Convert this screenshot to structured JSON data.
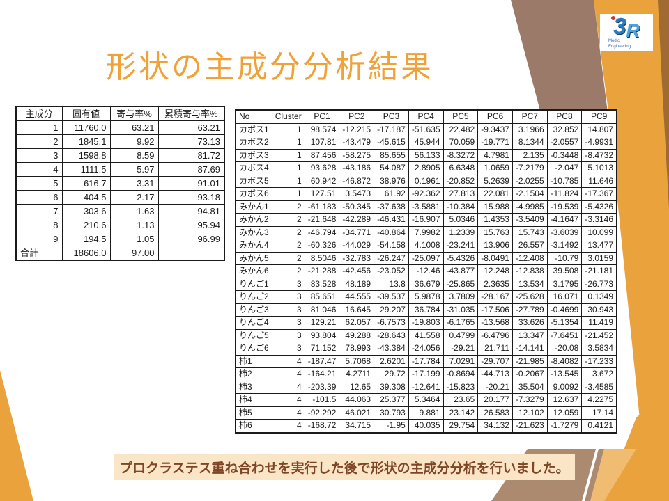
{
  "slide": {
    "title": "形状の主成分分析結果",
    "caption": "プロクラステス重ね合わせを実行した後で形状の主成分分析を行いました。"
  },
  "logo": {
    "mark_3": "3",
    "mark_r": "R",
    "line1": "Medic",
    "line2": "Engineering"
  },
  "colors": {
    "title_orange": "#F0A137",
    "orange": "#E9A23C",
    "taupe_top": "#9C7A6A",
    "sienna_corner": "#A06B32",
    "taupe_bottom": "#AC8A70",
    "light_orange": "#F0BC72",
    "caption_bg": "#FAE5C6",
    "caption_text": "#7E4627",
    "table_border": "#1A1A1A",
    "logo_blue_dark": "#2B7BC0",
    "logo_blue_light": "#4AA4DC",
    "logo_red": "#CC3333",
    "white": "#FFFFFF"
  },
  "eigen_table": {
    "headers": [
      "主成分",
      "固有値",
      "寄与率%",
      "累積寄与率%"
    ],
    "rows": [
      [
        "1",
        "11760.0",
        "63.21",
        "63.21"
      ],
      [
        "2",
        "1845.1",
        "9.92",
        "73.13"
      ],
      [
        "3",
        "1598.8",
        "8.59",
        "81.72"
      ],
      [
        "4",
        "1111.5",
        "5.97",
        "87.69"
      ],
      [
        "5",
        "616.7",
        "3.31",
        "91.01"
      ],
      [
        "6",
        "404.5",
        "2.17",
        "93.18"
      ],
      [
        "7",
        "303.6",
        "1.63",
        "94.81"
      ],
      [
        "8",
        "210.6",
        "1.13",
        "95.94"
      ],
      [
        "9",
        "194.5",
        "1.05",
        "96.99"
      ],
      [
        "合計",
        "18606.0",
        "97.00",
        ""
      ]
    ]
  },
  "pc_table": {
    "headers": [
      "No",
      "Cluster",
      "PC1",
      "PC2",
      "PC3",
      "PC4",
      "PC5",
      "PC6",
      "PC7",
      "PC8",
      "PC9"
    ],
    "rows": [
      [
        "カボス1",
        "1",
        "98.574",
        "-12.215",
        "-17.187",
        "-51.635",
        "22.482",
        "-9.3437",
        "3.1966",
        "32.852",
        "14.807"
      ],
      [
        "カボス2",
        "1",
        "107.81",
        "-43.479",
        "-45.615",
        "45.944",
        "70.059",
        "-19.771",
        "8.1344",
        "-2.0557",
        "-4.9931"
      ],
      [
        "カボス3",
        "1",
        "87.456",
        "-58.275",
        "85.655",
        "56.133",
        "-8.3272",
        "4.7981",
        "2.135",
        "-0.3448",
        "-8.4732"
      ],
      [
        "カボス4",
        "1",
        "93.628",
        "-43.186",
        "54.087",
        "2.8905",
        "6.6348",
        "1.0659",
        "-7.2179",
        "-2.047",
        "5.1013"
      ],
      [
        "カボス5",
        "1",
        "60.942",
        "-46.872",
        "38.976",
        "0.1961",
        "-20.852",
        "5.2639",
        "-2.0255",
        "-10.785",
        "11.646"
      ],
      [
        "カボス6",
        "1",
        "127.51",
        "3.5473",
        "61.92",
        "-92.362",
        "27.813",
        "22.081",
        "-2.1504",
        "-11.824",
        "-17.367"
      ],
      [
        "みかん1",
        "2",
        "-61.183",
        "-50.345",
        "-37.638",
        "-3.5881",
        "-10.384",
        "15.988",
        "-4.9985",
        "-19.539",
        "-5.4326"
      ],
      [
        "みかん2",
        "2",
        "-21.648",
        "-42.289",
        "-46.431",
        "-16.907",
        "5.0346",
        "1.4353",
        "-3.5409",
        "-4.1647",
        "-3.3146"
      ],
      [
        "みかん3",
        "2",
        "-46.794",
        "-34.771",
        "-40.864",
        "7.9982",
        "1.2339",
        "15.763",
        "15.743",
        "-3.6039",
        "10.099"
      ],
      [
        "みかん4",
        "2",
        "-60.326",
        "-44.029",
        "-54.158",
        "4.1008",
        "-23.241",
        "13.906",
        "26.557",
        "-3.1492",
        "13.477"
      ],
      [
        "みかん5",
        "2",
        "8.5046",
        "-32.783",
        "-26.247",
        "-25.097",
        "-5.4326",
        "-8.0491",
        "-12.408",
        "-10.79",
        "3.0159"
      ],
      [
        "みかん6",
        "2",
        "-21.288",
        "-42.456",
        "-23.052",
        "-12.46",
        "-43.877",
        "12.248",
        "-12.838",
        "39.508",
        "-21.181"
      ],
      [
        "りんご1",
        "3",
        "83.528",
        "48.189",
        "13.8",
        "36.679",
        "-25.865",
        "2.3635",
        "13.534",
        "3.1795",
        "-26.773"
      ],
      [
        "りんご2",
        "3",
        "85.651",
        "44.555",
        "-39.537",
        "5.9878",
        "3.7809",
        "-28.167",
        "-25.628",
        "16.071",
        "0.1349"
      ],
      [
        "りんご3",
        "3",
        "81.046",
        "16.645",
        "29.207",
        "36.784",
        "-31.035",
        "-17.506",
        "-27.789",
        "-0.4699",
        "30.943"
      ],
      [
        "りんご4",
        "3",
        "129.21",
        "62.057",
        "-6.7573",
        "-19.803",
        "-6.1765",
        "-13.568",
        "33.626",
        "-5.1354",
        "11.419"
      ],
      [
        "りんご5",
        "3",
        "93.804",
        "49.288",
        "-28.643",
        "41.558",
        "0.4799",
        "-6.4796",
        "13.347",
        "-7.6451",
        "-21.452"
      ],
      [
        "りんご6",
        "3",
        "71.152",
        "78.993",
        "-43.384",
        "-24.056",
        "-29.21",
        "21.711",
        "-14.141",
        "-20.08",
        "3.5834"
      ],
      [
        "柿1",
        "4",
        "-187.47",
        "5.7068",
        "2.6201",
        "-17.784",
        "7.0291",
        "-29.707",
        "-21.985",
        "-8.4082",
        "-17.233"
      ],
      [
        "柿2",
        "4",
        "-164.21",
        "4.2711",
        "29.72",
        "-17.199",
        "-0.8694",
        "-44.713",
        "-0.2067",
        "-13.545",
        "3.672"
      ],
      [
        "柿3",
        "4",
        "-203.39",
        "12.65",
        "39.308",
        "-12.641",
        "-15.823",
        "-20.21",
        "35.504",
        "9.0092",
        "-3.4585"
      ],
      [
        "柿4",
        "4",
        "-101.5",
        "44.063",
        "25.377",
        "5.3464",
        "23.65",
        "20.177",
        "-7.3279",
        "12.637",
        "4.2275"
      ],
      [
        "柿5",
        "4",
        "-92.292",
        "46.021",
        "30.793",
        "9.881",
        "23.142",
        "26.583",
        "12.102",
        "12.059",
        "17.14"
      ],
      [
        "柿6",
        "4",
        "-168.72",
        "34.715",
        "-1.95",
        "40.035",
        "29.754",
        "34.132",
        "-21.623",
        "-1.7279",
        "0.4121"
      ]
    ]
  }
}
